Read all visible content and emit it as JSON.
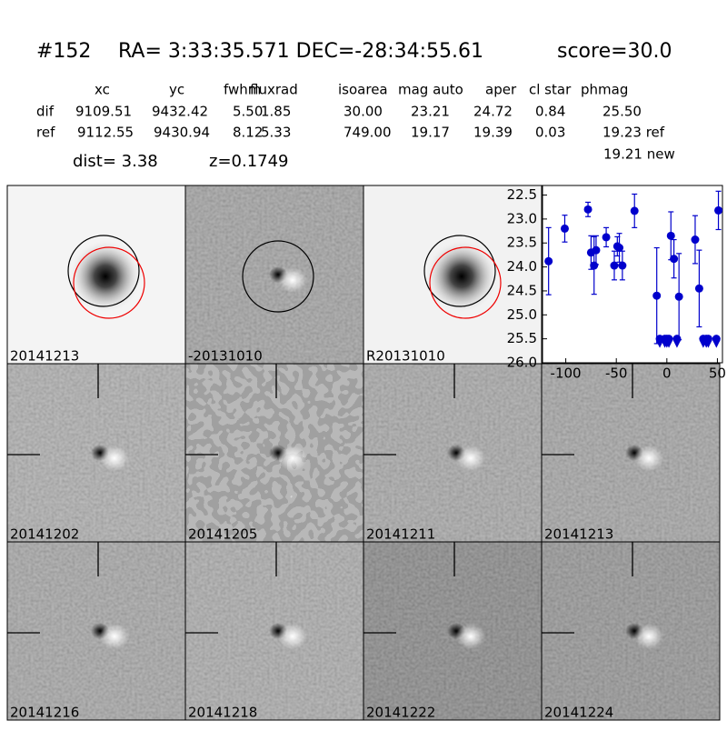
{
  "header": {
    "id": "#152",
    "coords": "RA= 3:33:35.571 DEC=-28:34:55.61",
    "score": "score=30.0"
  },
  "table": {
    "columns": [
      "xc",
      "yc",
      "fwhm",
      "fluxrad",
      "isoarea",
      "mag auto",
      "aper",
      "cl star",
      "phmag"
    ],
    "rows": [
      {
        "label": "dif",
        "cells": [
          "9109.51",
          "9432.42",
          "5.50",
          "1.85",
          "30.00",
          "23.21",
          "24.72",
          "0.84",
          "25.50"
        ]
      },
      {
        "label": "ref",
        "cells": [
          "9112.55",
          "9430.94",
          "8.12",
          "5.33",
          "749.00",
          "19.17",
          "19.39",
          "0.03",
          "19.23 ref"
        ]
      }
    ],
    "note": "19.21 new"
  },
  "dist": "dist=  3.38",
  "redshift": "z=0.1749",
  "panels": [
    {
      "label": "20141213",
      "color": "#000000"
    },
    {
      "label": "-20131010",
      "color": "#000000"
    },
    {
      "label": "R20131010",
      "color": "#000000"
    },
    {
      "label": "20141202",
      "color": "#000000"
    },
    {
      "label": "20141205",
      "color": "#000000"
    },
    {
      "label": "20141211",
      "color": "#000000"
    },
    {
      "label": "20141213",
      "color": "#ff0000"
    },
    {
      "label": "20141216",
      "color": "#000000"
    },
    {
      "label": "20141218",
      "color": "#000000"
    },
    {
      "label": "20141222",
      "color": "#000000"
    },
    {
      "label": "20141224",
      "color": "#000000"
    }
  ],
  "chart_data": {
    "type": "scatter",
    "color": "#0000cc",
    "invert_y": true,
    "x": [
      -117,
      -101,
      -78,
      -75,
      -72,
      -70,
      -60,
      -52,
      -49,
      -47,
      -44,
      -32,
      -10,
      4,
      7,
      12,
      28,
      32,
      51
    ],
    "values": [
      23.88,
      23.2,
      22.8,
      23.7,
      23.97,
      23.65,
      23.38,
      23.97,
      23.57,
      23.6,
      23.97,
      22.83,
      24.6,
      23.35,
      23.83,
      24.62,
      23.43,
      24.45,
      22.82
    ],
    "errors": [
      0.7,
      0.28,
      0.15,
      0.35,
      0.6,
      0.3,
      0.2,
      0.3,
      0.2,
      0.3,
      0.3,
      0.35,
      1.0,
      0.5,
      0.4,
      0.9,
      0.5,
      0.8,
      0.4
    ],
    "upper_limits": {
      "x": [
        -7,
        -2,
        0,
        2,
        10,
        36,
        39,
        41,
        49
      ],
      "values": [
        25.5,
        25.5,
        25.5,
        25.5,
        25.5,
        25.5,
        25.5,
        25.5,
        25.5
      ]
    },
    "xlim": [
      -123,
      55
    ],
    "xticks": [
      -100,
      -50,
      0,
      50
    ],
    "ylim": [
      22.3,
      26.0
    ],
    "yticks": [
      22.5,
      {
        "value": 23,
        "label": "23.0"
      },
      23.5,
      {
        "value": 24,
        "label": "24.0"
      },
      24.5,
      {
        "value": 25,
        "label": "25.0"
      },
      25.5,
      {
        "value": 26,
        "label": "26.0"
      }
    ]
  }
}
